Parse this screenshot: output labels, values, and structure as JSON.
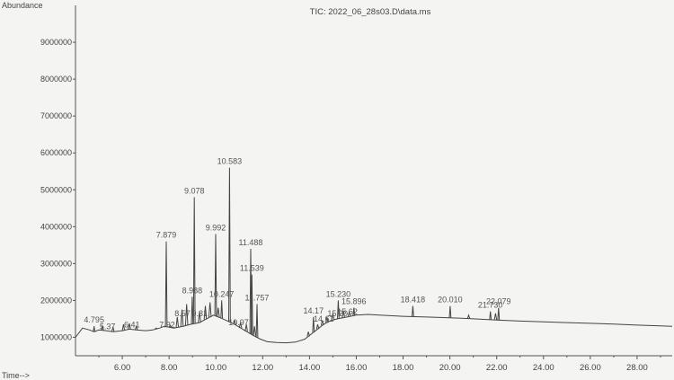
{
  "chart_data": {
    "type": "line",
    "title": "TIC: 2022_06_28s03.D\\data.ms",
    "ylabel": "Abundance",
    "xlabel": "Time-->",
    "xlim": [
      4.0,
      29.5
    ],
    "ylim": [
      500000,
      10000000
    ],
    "grid": false,
    "x_ticks": [
      "6.00",
      "8.00",
      "10.00",
      "12.00",
      "14.00",
      "16.00",
      "18.00",
      "20.00",
      "22.00",
      "24.00",
      "26.00",
      "28.00"
    ],
    "y_ticks": [
      "1000000",
      "2000000",
      "3000000",
      "4000000",
      "5000000",
      "6000000",
      "7000000",
      "8000000",
      "9000000"
    ],
    "series": [
      {
        "x": [
          4.0,
          4.3,
          4.6,
          4.8,
          5.0,
          5.3,
          5.6,
          6.0,
          6.3,
          6.6,
          7.0,
          7.3,
          7.6,
          7.8,
          8.2,
          8.6,
          8.9,
          9.3,
          9.6,
          9.9,
          10.3,
          10.8,
          11.2,
          11.6,
          11.9,
          12.2,
          12.6,
          13.0,
          13.4,
          13.8,
          14.0,
          14.3,
          14.6,
          14.9,
          15.2,
          15.6,
          16.0,
          16.5,
          17.0,
          18.0,
          19.0,
          20.0,
          21.0,
          22.0,
          23.0,
          24.0,
          25.0,
          26.0,
          27.0,
          28.0,
          29.0,
          29.5
        ],
        "y": [
          1000000,
          1250000,
          1200000,
          1150000,
          1200000,
          1180000,
          1150000,
          1180000,
          1220000,
          1200000,
          1180000,
          1200000,
          1250000,
          1300000,
          1250000,
          1300000,
          1350000,
          1400000,
          1500000,
          1600000,
          1500000,
          1350000,
          1200000,
          1050000,
          950000,
          880000,
          860000,
          850000,
          870000,
          950000,
          1050000,
          1200000,
          1350000,
          1450000,
          1500000,
          1550000,
          1600000,
          1620000,
          1600000,
          1570000,
          1550000,
          1530000,
          1500000,
          1470000,
          1440000,
          1420000,
          1400000,
          1380000,
          1360000,
          1330000,
          1310000,
          1300000
        ]
      }
    ],
    "peaks": [
      {
        "label": "4.795",
        "rt": 4.795,
        "apex": 1300000
      },
      {
        "label": "7.879",
        "rt": 7.879,
        "apex": 3600000
      },
      {
        "label": "9.078",
        "rt": 9.078,
        "apex": 4800000
      },
      {
        "label": "8.988",
        "rt": 8.988,
        "apex": 2100000
      },
      {
        "label": "9.992",
        "rt": 9.992,
        "apex": 3800000
      },
      {
        "label": "10.583",
        "rt": 10.583,
        "apex": 5600000
      },
      {
        "label": "10.247",
        "rt": 10.247,
        "apex": 2000000
      },
      {
        "label": "11.488",
        "rt": 11.488,
        "apex": 3400000
      },
      {
        "label": "11.539",
        "rt": 11.539,
        "apex": 2700000
      },
      {
        "label": "11.757",
        "rt": 11.757,
        "apex": 1900000
      },
      {
        "label": "14.17",
        "rt": 14.17,
        "apex": 1550000
      },
      {
        "label": "15.230",
        "rt": 15.23,
        "apex": 2000000
      },
      {
        "label": "15.896",
        "rt": 15.896,
        "apex": 1800000
      },
      {
        "label": "18.418",
        "rt": 18.418,
        "apex": 1850000
      },
      {
        "label": "20.010",
        "rt": 20.01,
        "apex": 1850000
      },
      {
        "label": "21.730",
        "rt": 21.73,
        "apex": 1700000
      },
      {
        "label": "22.079",
        "rt": 22.079,
        "apex": 1800000
      }
    ],
    "minor_peaks": [
      {
        "rt": 5.15,
        "apex": 1300000
      },
      {
        "rt": 5.6,
        "apex": 1280000
      },
      {
        "rt": 6.05,
        "apex": 1350000
      },
      {
        "rt": 6.3,
        "apex": 1380000
      },
      {
        "rt": 6.6,
        "apex": 1300000
      },
      {
        "rt": 7.45,
        "apex": 1250000
      },
      {
        "rt": 8.05,
        "apex": 1320000
      },
      {
        "rt": 8.35,
        "apex": 1550000
      },
      {
        "rt": 8.55,
        "apex": 1750000
      },
      {
        "rt": 8.75,
        "apex": 1900000
      },
      {
        "rt": 9.3,
        "apex": 1700000
      },
      {
        "rt": 9.55,
        "apex": 1850000
      },
      {
        "rt": 9.75,
        "apex": 1950000
      },
      {
        "rt": 10.1,
        "apex": 1800000
      },
      {
        "rt": 10.8,
        "apex": 1450000
      },
      {
        "rt": 11.05,
        "apex": 1400000
      },
      {
        "rt": 11.3,
        "apex": 1350000
      },
      {
        "rt": 11.65,
        "apex": 1300000
      },
      {
        "rt": 13.95,
        "apex": 1150000
      },
      {
        "rt": 14.35,
        "apex": 1350000
      },
      {
        "rt": 14.55,
        "apex": 1450000
      },
      {
        "rt": 14.75,
        "apex": 1550000
      },
      {
        "rt": 15.0,
        "apex": 1650000
      },
      {
        "rt": 15.45,
        "apex": 1700000
      },
      {
        "rt": 15.7,
        "apex": 1700000
      },
      {
        "rt": 20.8,
        "apex": 1600000
      },
      {
        "rt": 21.95,
        "apex": 1650000
      }
    ],
    "minor_labels": [
      {
        "label": "5.37",
        "rt": 5.37,
        "apex": 1150000
      },
      {
        "label": "6.41",
        "rt": 6.41,
        "apex": 1200000
      },
      {
        "label": "7.92",
        "rt": 7.92,
        "apex": 1200000
      },
      {
        "label": "8.57",
        "rt": 8.57,
        "apex": 1500000
      },
      {
        "label": "9.31",
        "rt": 9.31,
        "apex": 1500000
      },
      {
        "label": "10.97",
        "rt": 10.97,
        "apex": 1250000
      },
      {
        "label": "14.61",
        "rt": 14.61,
        "apex": 1350000
      },
      {
        "label": "15.20",
        "rt": 15.2,
        "apex": 1500000
      },
      {
        "label": "15.62",
        "rt": 15.62,
        "apex": 1550000
      }
    ]
  }
}
